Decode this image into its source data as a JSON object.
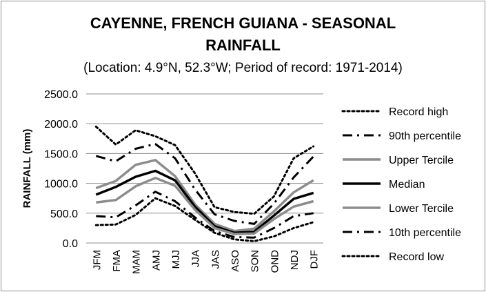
{
  "chart_data": {
    "type": "line",
    "title_line1": "CAYENNE, FRENCH GUIANA - SEASONAL",
    "title_line2": "RAINFALL",
    "subtitle": "(Location: 4.9°N, 52.3°W; Period of record: 1971-2014)",
    "xlabel": "",
    "ylabel": "RAINFALL (mm)",
    "ylim": [
      0,
      2500
    ],
    "ytick_step": 500,
    "y_tick_labels": [
      "0.0",
      "500.0",
      "1000.0",
      "1500.0",
      "2000.0",
      "2500.0"
    ],
    "grid": true,
    "legend_position": "right",
    "categories": [
      "JFM",
      "FMA",
      "MAM",
      "AMJ",
      "MJJ",
      "JJA",
      "JAS",
      "ASO",
      "SON",
      "OND",
      "NDJ",
      "DJF"
    ],
    "series": [
      {
        "name": "Record high",
        "style": "dotted",
        "color": "#000000",
        "values": [
          1950,
          1650,
          1890,
          1790,
          1640,
          1170,
          600,
          520,
          490,
          780,
          1420,
          1620
        ]
      },
      {
        "name": "90th percentile",
        "style": "dashdot",
        "color": "#000000",
        "values": [
          1460,
          1370,
          1580,
          1660,
          1420,
          900,
          480,
          370,
          320,
          660,
          1100,
          1450
        ]
      },
      {
        "name": "Upper Tercile",
        "style": "solid-thick",
        "color": "#8c8c8c",
        "values": [
          920,
          1040,
          1310,
          1390,
          1120,
          650,
          320,
          200,
          240,
          530,
          850,
          1050
        ]
      },
      {
        "name": "Median",
        "style": "solid-thick",
        "color": "#000000",
        "values": [
          810,
          940,
          1110,
          1210,
          1050,
          610,
          280,
          170,
          190,
          460,
          740,
          840
        ]
      },
      {
        "name": "Lower Tercile",
        "style": "solid-thick",
        "color": "#8c8c8c",
        "values": [
          680,
          720,
          950,
          1090,
          960,
          560,
          250,
          150,
          160,
          400,
          610,
          700
        ]
      },
      {
        "name": "10th percentile",
        "style": "dashdot",
        "color": "#000000",
        "values": [
          450,
          430,
          630,
          860,
          700,
          430,
          200,
          100,
          90,
          250,
          450,
          500
        ]
      },
      {
        "name": "Record low",
        "style": "dotted",
        "color": "#000000",
        "values": [
          300,
          310,
          470,
          750,
          620,
          390,
          170,
          60,
          30,
          110,
          250,
          350
        ]
      }
    ]
  }
}
